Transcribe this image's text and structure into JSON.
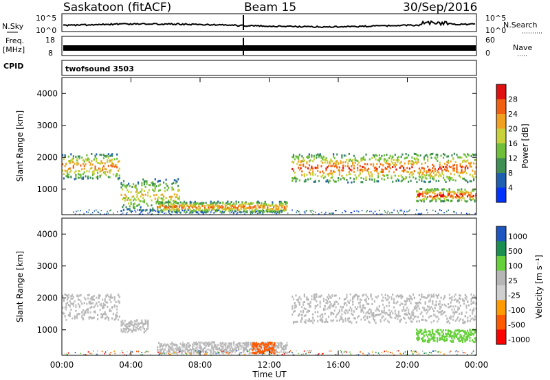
{
  "header": {
    "station": "Saskatoon (fitACF)",
    "beam": "Beam 15",
    "date": "30/Sep/2016"
  },
  "strips": {
    "nsky_label": "N.Sky",
    "nsky_ticks": [
      "10^5",
      "10^0"
    ],
    "nsearch_label": "N.Search",
    "freq_label_1": "Freq.",
    "freq_label_2": "[MHz]",
    "freq_ticks": [
      "18",
      "8"
    ],
    "nave_label": "Nave",
    "nave_ticks": [
      "60",
      "0"
    ],
    "cpid_label": "CPID",
    "cpid_value": "twofsound 3503"
  },
  "colors": {
    "power": [
      "#0033ff",
      "#1f5fb0",
      "#3f8f55",
      "#6fbf3a",
      "#c8d03a",
      "#f0a020",
      "#f06010",
      "#e01010"
    ],
    "velocity": [
      "#ff0000",
      "#ff5a00",
      "#ff9a00",
      "#cfcfcf",
      "#b6b6b6",
      "#66d03a",
      "#1a8f50",
      "#1f55c0"
    ],
    "ground_scatter": "#c0c0c0"
  },
  "chart_data": [
    {
      "type": "heatmap",
      "name": "power-panel",
      "xlabel": "",
      "ylabel": "Slant Range [km]",
      "x_range_hours": [
        0,
        24
      ],
      "ylim": [
        200,
        4500
      ],
      "yticks": [
        1000,
        2000,
        3000,
        4000
      ],
      "colorbar": {
        "label": "Power [dB]",
        "ticks": [
          "4",
          "8",
          "12",
          "16",
          "20",
          "24",
          "28"
        ],
        "range": [
          0,
          30
        ]
      },
      "scatter_regions": [
        {
          "t_start": 0.0,
          "t_end": 3.3,
          "range_min": 1300,
          "range_max": 2100,
          "peak_dB": 24
        },
        {
          "t_start": 3.4,
          "t_end": 6.8,
          "range_min": 300,
          "range_max": 1300,
          "peak_dB": 20
        },
        {
          "t_start": 5.5,
          "t_end": 13.0,
          "range_min": 250,
          "range_max": 600,
          "peak_dB": 24
        },
        {
          "t_start": 13.3,
          "t_end": 24.0,
          "range_min": 1200,
          "range_max": 2100,
          "peak_dB": 26
        },
        {
          "t_start": 20.5,
          "t_end": 24.0,
          "range_min": 600,
          "range_max": 1000,
          "peak_dB": 28
        }
      ]
    },
    {
      "type": "heatmap",
      "name": "velocity-panel",
      "xlabel": "Time UT",
      "ylabel": "Slant Range [km]",
      "x_range_hours": [
        0,
        24
      ],
      "x_tick_labels": [
        "00:00",
        "04:00",
        "08:00",
        "12:00",
        "16:00",
        "20:00",
        "00:00"
      ],
      "ylim": [
        200,
        4500
      ],
      "yticks": [
        1000,
        2000,
        3000,
        4000
      ],
      "colorbar": {
        "label": "Velocity [m s⁻¹]",
        "ticks": [
          "1000",
          "500",
          "100",
          "25",
          "-25",
          "-100",
          "-500",
          "-1000"
        ]
      },
      "scatter_regions": [
        {
          "t_start": 0.0,
          "t_end": 3.3,
          "range_min": 1300,
          "range_max": 2100,
          "velocity": 0
        },
        {
          "t_start": 3.4,
          "t_end": 5.0,
          "range_min": 900,
          "range_max": 1300,
          "velocity": 0
        },
        {
          "t_start": 5.5,
          "t_end": 13.0,
          "range_min": 250,
          "range_max": 600,
          "velocity": 50
        },
        {
          "t_start": 11.0,
          "t_end": 12.3,
          "range_min": 250,
          "range_max": 600,
          "velocity": -200
        },
        {
          "t_start": 13.3,
          "t_end": 24.0,
          "range_min": 1200,
          "range_max": 2100,
          "velocity": 0
        },
        {
          "t_start": 20.5,
          "t_end": 24.0,
          "range_min": 600,
          "range_max": 1000,
          "velocity": 300
        }
      ]
    }
  ]
}
